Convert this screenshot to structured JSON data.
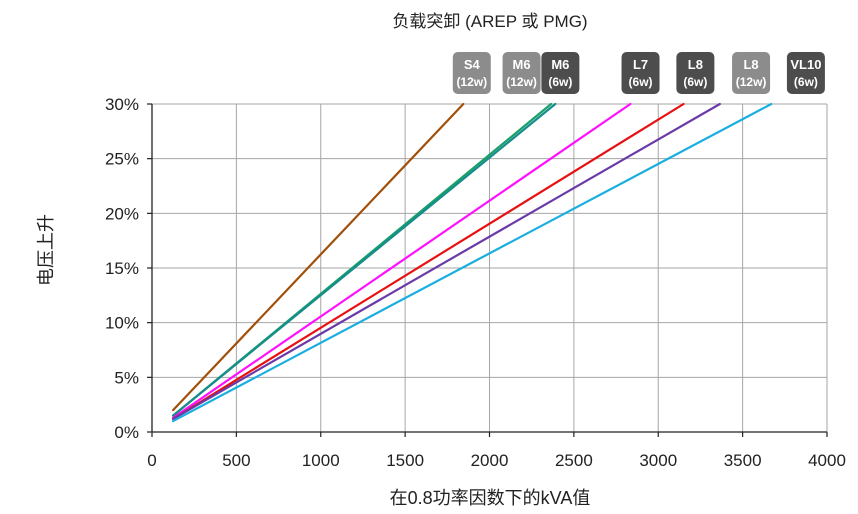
{
  "chart_data": {
    "type": "line",
    "title": "负载突卸 (AREP 或 PMG)",
    "xlabel": "在0.8功率因数下的kVA值",
    "ylabel": "电压上升",
    "xlim": [
      0,
      4000
    ],
    "ylim": [
      0,
      30
    ],
    "x_ticks": [
      "0",
      "500",
      "1000",
      "1500",
      "2000",
      "2500",
      "3000",
      "3500",
      "4000"
    ],
    "y_ticks": [
      "0%",
      "5%",
      "10%",
      "15%",
      "20%",
      "25%",
      "30%"
    ],
    "grid": true,
    "legend": "top-right",
    "series": [
      {
        "name": "S4 (12w)",
        "color": "#a0500a",
        "badge_color": "#8c8c8c",
        "line1": "S4",
        "line2": "(12w)",
        "x": [
          125,
          1845
        ],
        "y": [
          2.0,
          30
        ]
      },
      {
        "name": "M6 (12w)",
        "color": "#18a068",
        "badge_color": "#8c8c8c",
        "line1": "M6",
        "line2": "(12w)",
        "x": [
          125,
          2365
        ],
        "y": [
          1.5,
          30
        ]
      },
      {
        "name": "M6 (6w)",
        "color": "#168c8c",
        "badge_color": "#4d4d4d",
        "line1": "M6",
        "line2": "(6w)",
        "x": [
          125,
          2390
        ],
        "y": [
          1.5,
          30
        ]
      },
      {
        "name": "L7 (6w)",
        "color": "#ff10ff",
        "badge_color": "#4d4d4d",
        "line1": "L7",
        "line2": "(6w)",
        "x": [
          125,
          2835
        ],
        "y": [
          1.3,
          30
        ]
      },
      {
        "name": "L8 (6w)",
        "color": "#e81010",
        "badge_color": "#4d4d4d",
        "line1": "L8",
        "line2": "(6w)",
        "x": [
          125,
          3150
        ],
        "y": [
          1.2,
          30
        ]
      },
      {
        "name": "L8 (12w)",
        "color": "#6a3aa8",
        "badge_color": "#8c8c8c",
        "line1": "L8",
        "line2": "(12w)",
        "x": [
          125,
          3365
        ],
        "y": [
          1.2,
          30
        ]
      },
      {
        "name": "VL10 (6w)",
        "color": "#18aee0",
        "badge_color": "#4d4d4d",
        "line1": "VL10",
        "line2": "(6w)",
        "x": [
          125,
          3670
        ],
        "y": [
          1.0,
          30
        ]
      }
    ],
    "badges": [
      {
        "series": 0,
        "x": 1895
      },
      {
        "series": 1,
        "x": 2190
      },
      {
        "series": 2,
        "x": 2420
      },
      {
        "series": 3,
        "x": 2895
      },
      {
        "series": 4,
        "x": 3220
      },
      {
        "series": 5,
        "x": 3550
      },
      {
        "series": 6,
        "x": 3875
      }
    ]
  }
}
